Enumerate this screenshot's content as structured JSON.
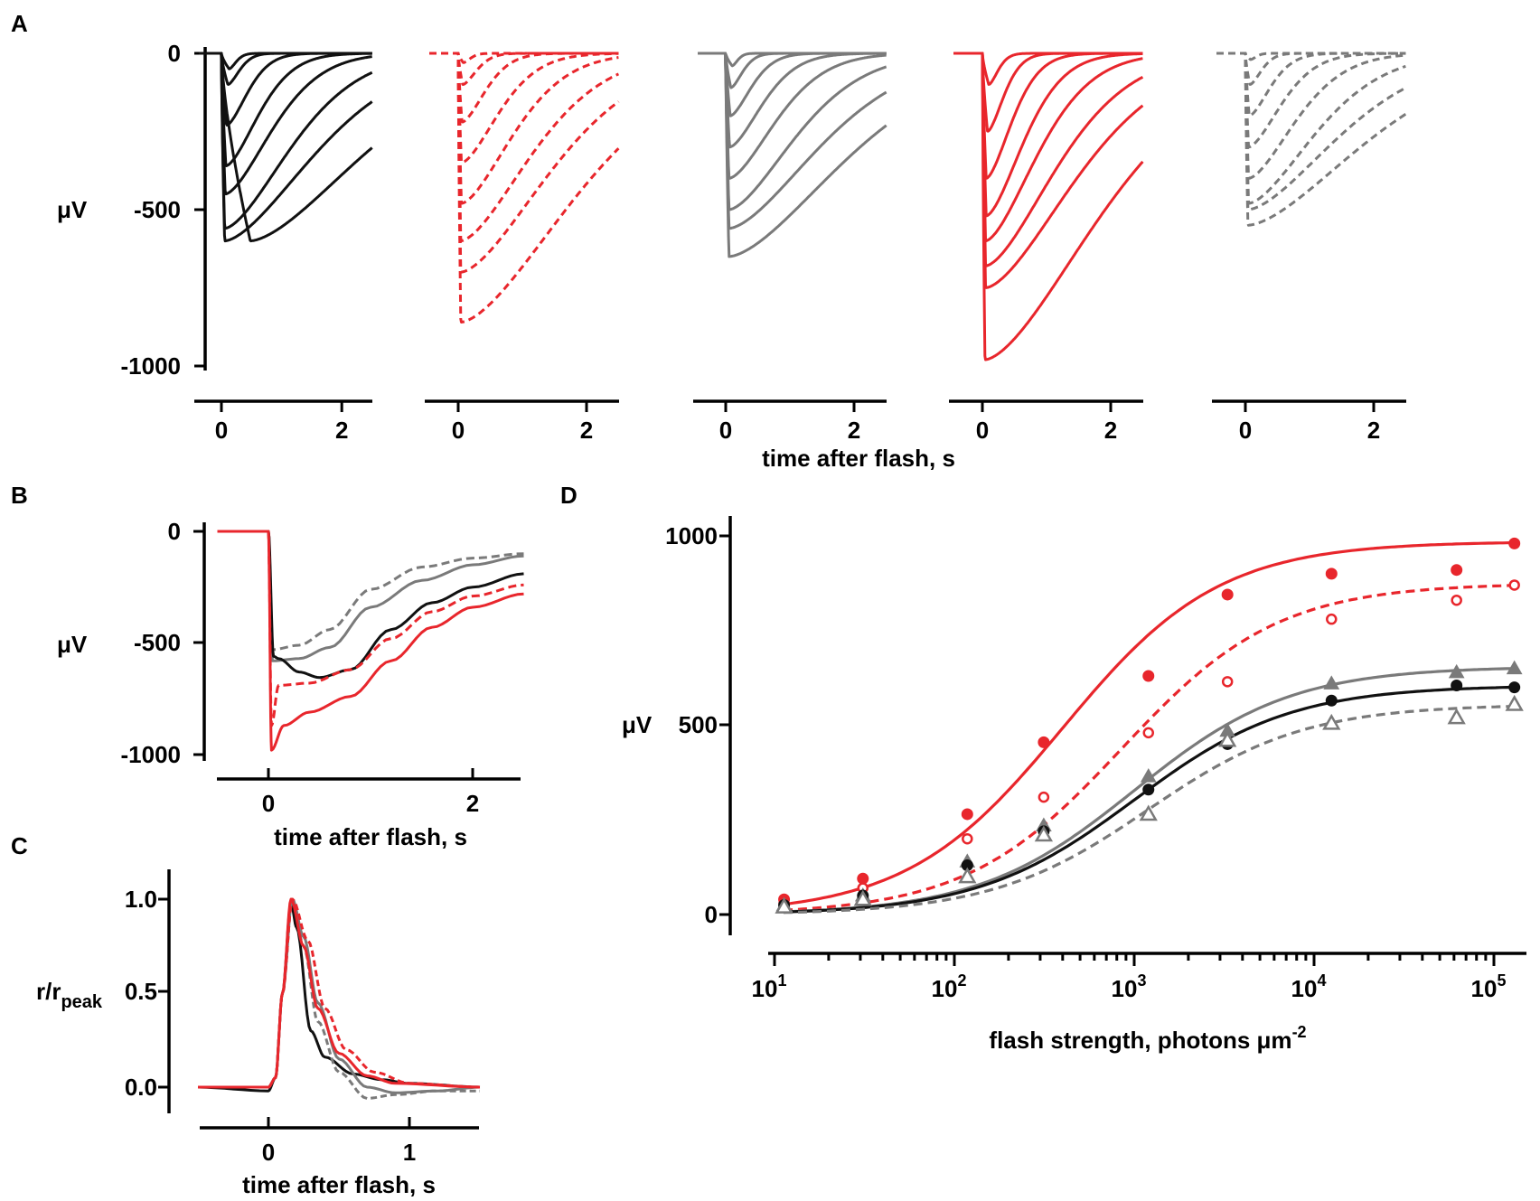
{
  "figure": {
    "panel_labels": [
      "A",
      "B",
      "C",
      "D"
    ],
    "colors": {
      "black": "#111111",
      "red": "#e8262c",
      "gray": "#7a7a7a"
    }
  },
  "chart_data": [
    {
      "id": "A",
      "type": "line",
      "title": "",
      "ylabel": "μV",
      "xlabel": "time after flash, s",
      "ylim": [
        -1000,
        0
      ],
      "xlim": [
        -0.5,
        2.5
      ],
      "y_ticks": [
        0,
        -500,
        -1000
      ],
      "y_tick_labels": [
        "0",
        "-500",
        "-1000"
      ],
      "x_ticks": [
        0,
        2
      ],
      "x_tick_labels": [
        "0",
        "2"
      ],
      "series": [
        {
          "name": "black solid",
          "color": "black",
          "dash": false,
          "peaks": [
            -50,
            -100,
            -230,
            -360,
            -450,
            -560,
            -600,
            -600
          ],
          "peak_times": [
            0.12,
            0.1,
            0.08,
            0.07,
            0.06,
            0.05,
            0.05,
            0.45
          ],
          "recovery_times": [
            0.15,
            0.25,
            0.45,
            0.7,
            1.0,
            1.4,
            1.9,
            2.4
          ]
        },
        {
          "name": "red dashed",
          "color": "red",
          "dash": true,
          "peaks": [
            -30,
            -100,
            -220,
            -350,
            -480,
            -600,
            -700,
            -860
          ],
          "peak_times": [
            0.08,
            0.07,
            0.06,
            0.05,
            0.05,
            0.04,
            0.04,
            0.04
          ],
          "recovery_times": [
            0.15,
            0.3,
            0.5,
            0.8,
            1.1,
            1.5,
            1.9,
            2.4
          ]
        },
        {
          "name": "gray solid",
          "color": "gray",
          "dash": false,
          "peaks": [
            -40,
            -110,
            -200,
            -300,
            -400,
            -500,
            -560,
            -650
          ],
          "peak_times": [
            0.1,
            0.08,
            0.07,
            0.06,
            0.05,
            0.05,
            0.05,
            0.05
          ],
          "recovery_times": [
            0.12,
            0.25,
            0.45,
            0.7,
            1.0,
            1.4,
            1.9,
            2.4
          ]
        },
        {
          "name": "red solid",
          "color": "red",
          "dash": false,
          "peaks": [
            -100,
            -250,
            -400,
            -520,
            -600,
            -680,
            -750,
            -980
          ],
          "peak_times": [
            0.1,
            0.08,
            0.06,
            0.06,
            0.05,
            0.05,
            0.05,
            0.04
          ],
          "recovery_times": [
            0.2,
            0.35,
            0.55,
            0.8,
            1.1,
            1.5,
            1.9,
            2.4
          ]
        },
        {
          "name": "gray dashed",
          "color": "gray",
          "dash": true,
          "peaks": [
            -20,
            -100,
            -200,
            -300,
            -400,
            -480,
            -500,
            -550
          ],
          "peak_times": [
            0.08,
            0.07,
            0.06,
            0.05,
            0.05,
            0.05,
            0.04,
            0.04
          ],
          "recovery_times": [
            0.12,
            0.25,
            0.45,
            0.7,
            1.0,
            1.4,
            1.9,
            2.4
          ]
        }
      ]
    },
    {
      "id": "B",
      "type": "line",
      "ylabel": "μV",
      "xlabel": "time after flash, s",
      "ylim": [
        -1000,
        0
      ],
      "xlim": [
        -0.5,
        2.5
      ],
      "y_ticks": [
        0,
        -500,
        -1000
      ],
      "y_tick_labels": [
        "0",
        "-500",
        "-1000"
      ],
      "x_ticks": [
        0,
        2
      ],
      "x_tick_labels": [
        "0",
        "2"
      ],
      "series": [
        {
          "name": "gray dashed",
          "color": "gray",
          "dash": true,
          "points": [
            [
              -0.5,
              0
            ],
            [
              0,
              0
            ],
            [
              0.04,
              -530
            ],
            [
              0.3,
              -510
            ],
            [
              0.6,
              -440
            ],
            [
              1.0,
              -260
            ],
            [
              1.5,
              -160
            ],
            [
              2.0,
              -120
            ],
            [
              2.5,
              -100
            ]
          ]
        },
        {
          "name": "gray solid",
          "color": "gray",
          "dash": false,
          "points": [
            [
              -0.5,
              0
            ],
            [
              0,
              0
            ],
            [
              0.04,
              -580
            ],
            [
              0.3,
              -570
            ],
            [
              0.6,
              -520
            ],
            [
              1.0,
              -340
            ],
            [
              1.5,
              -220
            ],
            [
              2.0,
              -150
            ],
            [
              2.5,
              -110
            ]
          ]
        },
        {
          "name": "black solid",
          "color": "black",
          "dash": false,
          "points": [
            [
              -0.5,
              0
            ],
            [
              0,
              0
            ],
            [
              0.05,
              -560
            ],
            [
              0.1,
              -570
            ],
            [
              0.3,
              -630
            ],
            [
              0.5,
              -655
            ],
            [
              0.8,
              -620
            ],
            [
              1.2,
              -440
            ],
            [
              1.6,
              -320
            ],
            [
              2.0,
              -250
            ],
            [
              2.5,
              -190
            ]
          ]
        },
        {
          "name": "red dashed",
          "color": "red",
          "dash": true,
          "points": [
            [
              -0.5,
              0
            ],
            [
              0,
              0
            ],
            [
              0.03,
              -870
            ],
            [
              0.1,
              -690
            ],
            [
              0.4,
              -680
            ],
            [
              0.8,
              -620
            ],
            [
              1.2,
              -480
            ],
            [
              1.6,
              -360
            ],
            [
              2.0,
              -290
            ],
            [
              2.5,
              -240
            ]
          ]
        },
        {
          "name": "red solid",
          "color": "red",
          "dash": false,
          "points": [
            [
              -0.5,
              0
            ],
            [
              0,
              0
            ],
            [
              0.03,
              -980
            ],
            [
              0.15,
              -870
            ],
            [
              0.4,
              -810
            ],
            [
              0.8,
              -740
            ],
            [
              1.2,
              -580
            ],
            [
              1.6,
              -430
            ],
            [
              2.0,
              -340
            ],
            [
              2.5,
              -280
            ]
          ]
        }
      ]
    },
    {
      "id": "C",
      "type": "line",
      "ylabel_main": "r/r",
      "ylabel_sub": "peak",
      "xlabel": "time after flash, s",
      "ylim": [
        -0.1,
        1.1
      ],
      "xlim": [
        -0.5,
        1.5
      ],
      "y_ticks": [
        0,
        0.5,
        1.0
      ],
      "y_tick_labels": [
        "0.0",
        "0.5",
        "1.0"
      ],
      "x_ticks": [
        0,
        1
      ],
      "x_tick_labels": [
        "0",
        "1"
      ],
      "series": [
        {
          "name": "black solid",
          "color": "black",
          "dash": false,
          "points": [
            [
              -0.5,
              0
            ],
            [
              0,
              -0.02
            ],
            [
              0.05,
              0.05
            ],
            [
              0.1,
              0.5
            ],
            [
              0.16,
              0.98
            ],
            [
              0.2,
              0.85
            ],
            [
              0.3,
              0.3
            ],
            [
              0.4,
              0.16
            ],
            [
              0.6,
              0.07
            ],
            [
              0.8,
              0.04
            ],
            [
              1.0,
              0.02
            ],
            [
              1.5,
              0
            ]
          ]
        },
        {
          "name": "gray solid",
          "color": "gray",
          "dash": false,
          "points": [
            [
              -0.5,
              0
            ],
            [
              0,
              0
            ],
            [
              0.05,
              0.05
            ],
            [
              0.1,
              0.5
            ],
            [
              0.17,
              1.0
            ],
            [
              0.25,
              0.8
            ],
            [
              0.35,
              0.45
            ],
            [
              0.5,
              0.15
            ],
            [
              0.7,
              0.0
            ],
            [
              0.9,
              -0.03
            ],
            [
              1.2,
              -0.02
            ],
            [
              1.5,
              0
            ]
          ]
        },
        {
          "name": "gray dashed",
          "color": "gray",
          "dash": true,
          "points": [
            [
              -0.5,
              0
            ],
            [
              0,
              0
            ],
            [
              0.05,
              0.05
            ],
            [
              0.1,
              0.5
            ],
            [
              0.17,
              1.0
            ],
            [
              0.25,
              0.75
            ],
            [
              0.35,
              0.35
            ],
            [
              0.5,
              0.08
            ],
            [
              0.7,
              -0.06
            ],
            [
              0.9,
              -0.04
            ],
            [
              1.2,
              -0.02
            ],
            [
              1.5,
              -0.02
            ]
          ]
        },
        {
          "name": "red dashed",
          "color": "red",
          "dash": true,
          "points": [
            [
              -0.5,
              0
            ],
            [
              0,
              0
            ],
            [
              0.05,
              0.05
            ],
            [
              0.1,
              0.5
            ],
            [
              0.17,
              1.0
            ],
            [
              0.28,
              0.78
            ],
            [
              0.4,
              0.42
            ],
            [
              0.55,
              0.2
            ],
            [
              0.75,
              0.08
            ],
            [
              1.0,
              0.02
            ],
            [
              1.5,
              0
            ]
          ]
        },
        {
          "name": "red solid",
          "color": "red",
          "dash": false,
          "points": [
            [
              -0.5,
              0
            ],
            [
              0,
              0
            ],
            [
              0.05,
              0.05
            ],
            [
              0.1,
              0.5
            ],
            [
              0.16,
              1.0
            ],
            [
              0.25,
              0.75
            ],
            [
              0.35,
              0.42
            ],
            [
              0.5,
              0.18
            ],
            [
              0.7,
              0.06
            ],
            [
              0.9,
              0.02
            ],
            [
              1.5,
              0
            ]
          ]
        }
      ]
    },
    {
      "id": "D",
      "type": "scatter",
      "ylabel": "μV",
      "xlabel": "flash strength, photons μm",
      "xlabel_sup": "-2",
      "xscale": "log",
      "xlim": [
        10,
        140000
      ],
      "ylim": [
        -50,
        1050
      ],
      "y_ticks": [
        0,
        500,
        1000
      ],
      "y_tick_labels": [
        "0",
        "500",
        "1000"
      ],
      "x_ticks": [
        10,
        100,
        1000,
        10000,
        100000
      ],
      "x_tick_base": "10",
      "x_tick_exponents": [
        "1",
        "2",
        "3",
        "4",
        "5"
      ],
      "x": [
        11.3,
        31,
        118,
        314,
        1200,
        3300,
        12500,
        62000,
        130000
      ],
      "series": [
        {
          "name": "red filled circles",
          "color": "red",
          "marker": "circle",
          "filled": true,
          "values": [
            40,
            95,
            265,
            455,
            630,
            845,
            900,
            910,
            980
          ]
        },
        {
          "name": "red open circles",
          "color": "red",
          "marker": "circle",
          "filled": false,
          "values": [
            30,
            70,
            200,
            310,
            480,
            615,
            780,
            830,
            870
          ]
        },
        {
          "name": "gray filled triangles",
          "color": "gray",
          "marker": "triangle",
          "filled": true,
          "values": [
            25,
            50,
            140,
            235,
            365,
            485,
            610,
            640,
            650
          ]
        },
        {
          "name": "black filled circles",
          "color": "black",
          "marker": "circle",
          "filled": true,
          "values": [
            25,
            50,
            130,
            220,
            330,
            450,
            565,
            605,
            600
          ]
        },
        {
          "name": "gray open triangles",
          "color": "gray",
          "marker": "triangle",
          "filled": false,
          "values": [
            20,
            40,
            100,
            210,
            265,
            460,
            505,
            520,
            555
          ]
        }
      ],
      "fits": [
        {
          "name": "red solid fit",
          "color": "red",
          "dash": false,
          "rmax": 985,
          "i_half": 400
        },
        {
          "name": "red dashed fit",
          "color": "red",
          "dash": true,
          "rmax": 875,
          "i_half": 850
        },
        {
          "name": "gray solid fit",
          "color": "gray",
          "dash": false,
          "rmax": 655,
          "i_half": 1000
        },
        {
          "name": "black solid fit",
          "color": "black",
          "dash": false,
          "rmax": 605,
          "i_half": 1000
        },
        {
          "name": "gray dashed fit",
          "color": "gray",
          "dash": true,
          "rmax": 555,
          "i_half": 1200
        }
      ]
    }
  ]
}
